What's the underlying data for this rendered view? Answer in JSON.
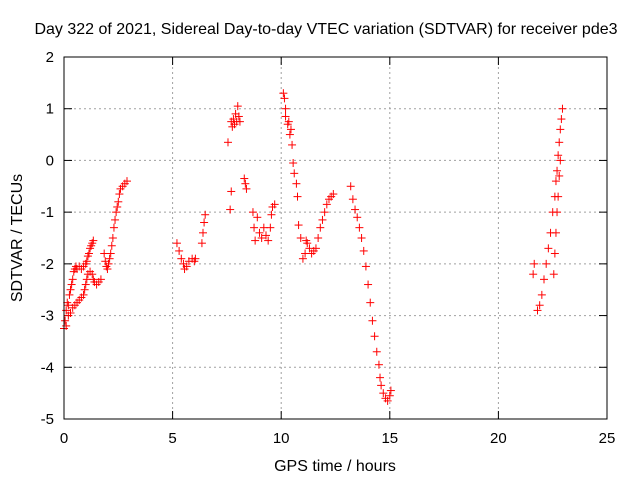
{
  "chart_data": {
    "type": "scatter",
    "title": "Day 322 of 2021, Sidereal Day-to-day VTEC variation (SDTVAR) for receiver pde3",
    "xlabel": "GPS time / hours",
    "ylabel": "SDTVAR / TECUs",
    "xlim": [
      0,
      25
    ],
    "ylim": [
      -5,
      2
    ],
    "xticks": [
      0,
      5,
      10,
      15,
      20,
      25
    ],
    "yticks": [
      -5,
      -4,
      -3,
      -2,
      -1,
      0,
      1,
      2
    ],
    "xtick_labels": [
      "0",
      "5",
      "10",
      "15",
      "20",
      "25"
    ],
    "ytick_labels": [
      "-5",
      "-4",
      "-3",
      "-2",
      "-1",
      "0",
      "1",
      "2"
    ],
    "grid": true,
    "marker": "+",
    "color": "#ff0000",
    "series": [
      {
        "name": "pde3",
        "points": [
          [
            0.0,
            -3.25
          ],
          [
            0.05,
            -3.1
          ],
          [
            0.1,
            -2.9
          ],
          [
            0.15,
            -2.75
          ],
          [
            0.2,
            -2.8
          ],
          [
            0.25,
            -2.6
          ],
          [
            0.3,
            -2.5
          ],
          [
            0.35,
            -2.4
          ],
          [
            0.4,
            -2.3
          ],
          [
            0.45,
            -2.15
          ],
          [
            0.5,
            -2.1
          ],
          [
            0.55,
            -2.05
          ],
          [
            0.6,
            -2.1
          ],
          [
            0.7,
            -2.05
          ],
          [
            0.8,
            -2.1
          ],
          [
            0.9,
            -2.05
          ],
          [
            1.0,
            -2.0
          ],
          [
            1.05,
            -1.95
          ],
          [
            1.1,
            -1.85
          ],
          [
            1.15,
            -1.8
          ],
          [
            1.2,
            -1.7
          ],
          [
            1.25,
            -1.65
          ],
          [
            1.3,
            -1.6
          ],
          [
            1.35,
            -1.55
          ],
          [
            0.1,
            -3.2
          ],
          [
            0.2,
            -3.0
          ],
          [
            0.3,
            -2.95
          ],
          [
            0.4,
            -2.85
          ],
          [
            0.5,
            -2.8
          ],
          [
            0.6,
            -2.75
          ],
          [
            0.7,
            -2.7
          ],
          [
            0.8,
            -2.65
          ],
          [
            0.9,
            -2.6
          ],
          [
            0.95,
            -2.5
          ],
          [
            1.0,
            -2.4
          ],
          [
            1.05,
            -2.3
          ],
          [
            1.1,
            -2.2
          ],
          [
            1.2,
            -2.15
          ],
          [
            1.3,
            -2.2
          ],
          [
            1.35,
            -2.3
          ],
          [
            1.4,
            -2.35
          ],
          [
            1.5,
            -2.4
          ],
          [
            1.6,
            -2.35
          ],
          [
            1.7,
            -2.3
          ],
          [
            1.85,
            -1.8
          ],
          [
            1.9,
            -1.95
          ],
          [
            1.95,
            -2.05
          ],
          [
            2.0,
            -2.1
          ],
          [
            2.05,
            -2.0
          ],
          [
            2.1,
            -1.9
          ],
          [
            2.15,
            -1.8
          ],
          [
            2.2,
            -1.65
          ],
          [
            2.25,
            -1.5
          ],
          [
            2.3,
            -1.3
          ],
          [
            2.35,
            -1.15
          ],
          [
            2.4,
            -1.0
          ],
          [
            2.45,
            -0.9
          ],
          [
            2.5,
            -0.8
          ],
          [
            2.55,
            -0.65
          ],
          [
            2.6,
            -0.55
          ],
          [
            2.7,
            -0.5
          ],
          [
            2.8,
            -0.45
          ],
          [
            2.9,
            -0.4
          ],
          [
            5.2,
            -1.6
          ],
          [
            5.3,
            -1.75
          ],
          [
            5.4,
            -1.9
          ],
          [
            5.5,
            -2.0
          ],
          [
            5.55,
            -2.1
          ],
          [
            5.65,
            -2.05
          ],
          [
            5.75,
            -1.95
          ],
          [
            5.9,
            -1.9
          ],
          [
            6.0,
            -1.95
          ],
          [
            6.05,
            -1.9
          ],
          [
            6.35,
            -1.6
          ],
          [
            6.4,
            -1.4
          ],
          [
            6.45,
            -1.2
          ],
          [
            6.5,
            -1.05
          ],
          [
            7.55,
            0.35
          ],
          [
            7.65,
            -0.95
          ],
          [
            7.7,
            -0.6
          ],
          [
            7.7,
            0.75
          ],
          [
            7.75,
            0.65
          ],
          [
            7.8,
            0.8
          ],
          [
            7.85,
            0.7
          ],
          [
            7.9,
            0.9
          ],
          [
            7.95,
            0.75
          ],
          [
            8.0,
            1.05
          ],
          [
            8.05,
            0.85
          ],
          [
            8.1,
            0.75
          ],
          [
            8.3,
            -0.35
          ],
          [
            8.35,
            -0.45
          ],
          [
            8.4,
            -0.55
          ],
          [
            8.7,
            -1.0
          ],
          [
            8.75,
            -1.3
          ],
          [
            8.8,
            -1.55
          ],
          [
            8.9,
            -1.1
          ],
          [
            9.0,
            -1.4
          ],
          [
            9.1,
            -1.5
          ],
          [
            9.2,
            -1.3
          ],
          [
            9.3,
            -1.45
          ],
          [
            9.4,
            -1.55
          ],
          [
            9.5,
            -1.3
          ],
          [
            9.55,
            -1.05
          ],
          [
            9.6,
            -0.9
          ],
          [
            9.7,
            -0.85
          ],
          [
            10.1,
            1.3
          ],
          [
            10.15,
            1.2
          ],
          [
            10.2,
            1.0
          ],
          [
            10.2,
            0.85
          ],
          [
            10.3,
            0.7
          ],
          [
            10.35,
            0.75
          ],
          [
            10.4,
            0.5
          ],
          [
            10.45,
            0.6
          ],
          [
            10.5,
            0.3
          ],
          [
            10.55,
            -0.05
          ],
          [
            10.6,
            -0.25
          ],
          [
            10.7,
            -0.45
          ],
          [
            10.75,
            -0.7
          ],
          [
            10.8,
            -1.25
          ],
          [
            10.9,
            -1.5
          ],
          [
            11.0,
            -1.9
          ],
          [
            11.1,
            -1.8
          ],
          [
            11.15,
            -1.55
          ],
          [
            11.2,
            -1.6
          ],
          [
            11.3,
            -1.7
          ],
          [
            11.4,
            -1.8
          ],
          [
            11.5,
            -1.75
          ],
          [
            11.6,
            -1.7
          ],
          [
            11.7,
            -1.5
          ],
          [
            11.8,
            -1.3
          ],
          [
            11.9,
            -1.15
          ],
          [
            12.0,
            -1.0
          ],
          [
            12.1,
            -0.85
          ],
          [
            12.2,
            -0.75
          ],
          [
            12.3,
            -0.7
          ],
          [
            12.4,
            -0.65
          ],
          [
            13.2,
            -0.5
          ],
          [
            13.3,
            -0.75
          ],
          [
            13.4,
            -0.95
          ],
          [
            13.5,
            -1.1
          ],
          [
            13.6,
            -1.3
          ],
          [
            13.7,
            -1.5
          ],
          [
            13.8,
            -1.75
          ],
          [
            13.9,
            -2.05
          ],
          [
            14.0,
            -2.4
          ],
          [
            14.1,
            -2.75
          ],
          [
            14.2,
            -3.1
          ],
          [
            14.3,
            -3.4
          ],
          [
            14.4,
            -3.7
          ],
          [
            14.5,
            -3.95
          ],
          [
            14.55,
            -4.2
          ],
          [
            14.6,
            -4.35
          ],
          [
            14.7,
            -4.5
          ],
          [
            14.8,
            -4.6
          ],
          [
            14.9,
            -4.65
          ],
          [
            15.0,
            -4.55
          ],
          [
            15.05,
            -4.45
          ],
          [
            21.6,
            -2.2
          ],
          [
            21.65,
            -2.0
          ],
          [
            21.8,
            -2.9
          ],
          [
            21.9,
            -2.8
          ],
          [
            22.0,
            -2.6
          ],
          [
            22.1,
            -2.3
          ],
          [
            22.2,
            -2.0
          ],
          [
            22.3,
            -1.7
          ],
          [
            22.4,
            -1.4
          ],
          [
            22.5,
            -1.0
          ],
          [
            22.6,
            -0.7
          ],
          [
            22.65,
            -0.4
          ],
          [
            22.7,
            -0.2
          ],
          [
            22.75,
            0.1
          ],
          [
            22.8,
            0.35
          ],
          [
            22.85,
            0.6
          ],
          [
            22.9,
            0.8
          ],
          [
            22.95,
            1.0
          ],
          [
            22.55,
            -2.2
          ],
          [
            22.6,
            -1.8
          ],
          [
            22.65,
            -1.4
          ],
          [
            22.7,
            -1.0
          ],
          [
            22.75,
            -0.7
          ],
          [
            22.8,
            -0.3
          ],
          [
            22.85,
            0.0
          ]
        ]
      }
    ]
  }
}
